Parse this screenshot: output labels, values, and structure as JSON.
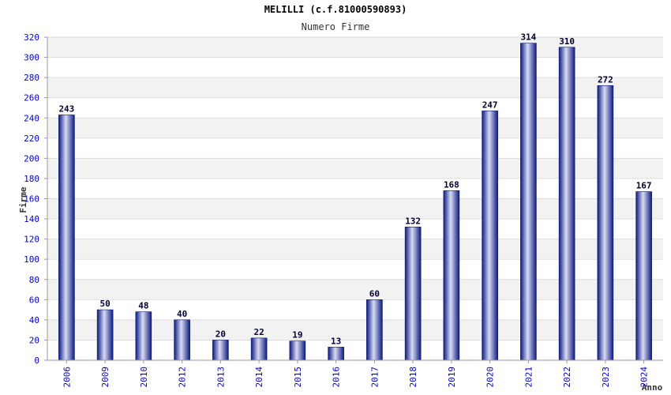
{
  "chart_data": {
    "type": "bar",
    "title": "MELILLI (c.f.81000590893)",
    "subtitle": "Numero Firme",
    "xlabel": "Anno",
    "ylabel": "Firme",
    "categories": [
      "2006",
      "2009",
      "2010",
      "2012",
      "2013",
      "2014",
      "2015",
      "2016",
      "2017",
      "2018",
      "2019",
      "2020",
      "2021",
      "2022",
      "2023",
      "2024"
    ],
    "values": [
      243,
      50,
      48,
      40,
      20,
      22,
      19,
      13,
      60,
      132,
      168,
      247,
      314,
      310,
      272,
      167
    ],
    "ylim": [
      0,
      320
    ],
    "yticks": [
      0,
      20,
      40,
      60,
      80,
      100,
      120,
      140,
      160,
      180,
      200,
      220,
      240,
      260,
      280,
      300,
      320
    ],
    "grid": true,
    "colors": {
      "bar_dark": "#0d1a80",
      "bar_light": "#d8dcf4",
      "tick": "#0000cc",
      "band": "#f2f2f2"
    }
  }
}
